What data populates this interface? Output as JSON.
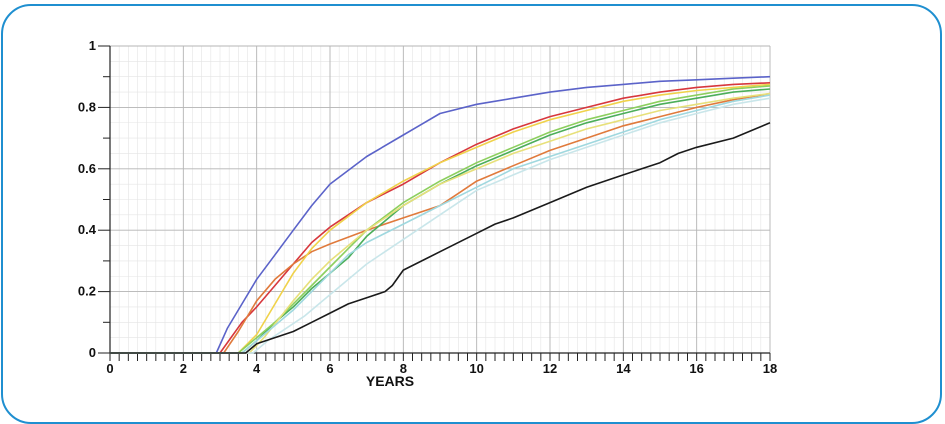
{
  "chart_data": {
    "type": "line",
    "title": "",
    "xlabel": "YEARS",
    "ylabel": "",
    "xlim": [
      0,
      18
    ],
    "ylim": [
      0,
      1
    ],
    "x_ticks": [
      0,
      2,
      4,
      6,
      8,
      10,
      12,
      14,
      16,
      18
    ],
    "y_ticks": [
      0,
      0.2,
      0.4,
      0.6,
      0.8,
      1
    ],
    "x_tick_labels": [
      "0",
      "2",
      "4",
      "6",
      "8",
      "10",
      "12",
      "14",
      "16",
      "18"
    ],
    "y_tick_labels": [
      "0",
      "0.2",
      "0.4",
      "0.6",
      "0.8",
      "1"
    ],
    "grid": true,
    "legend": "none",
    "series": [
      {
        "color": "#5b63c9",
        "x": [
          0,
          2.9,
          3.2,
          3.6,
          4.0,
          4.5,
          5.0,
          5.5,
          6.0,
          7.0,
          8.0,
          9.0,
          10.0,
          11.0,
          12.0,
          13.0,
          14.0,
          15.0,
          16.0,
          17.0,
          18.0
        ],
        "y": [
          0,
          0,
          0.08,
          0.16,
          0.24,
          0.32,
          0.4,
          0.48,
          0.55,
          0.64,
          0.71,
          0.78,
          0.81,
          0.83,
          0.85,
          0.865,
          0.875,
          0.885,
          0.89,
          0.895,
          0.9
        ]
      },
      {
        "color": "#d7373d",
        "x": [
          0,
          3.0,
          3.3,
          3.6,
          4.0,
          4.5,
          5.0,
          5.5,
          6.0,
          7.0,
          8.0,
          9.0,
          10.0,
          11.0,
          12.0,
          13.0,
          14.0,
          15.0,
          16.0,
          17.0,
          18.0
        ],
        "y": [
          0,
          0,
          0.05,
          0.1,
          0.15,
          0.22,
          0.29,
          0.36,
          0.41,
          0.49,
          0.55,
          0.62,
          0.68,
          0.73,
          0.77,
          0.8,
          0.83,
          0.85,
          0.865,
          0.875,
          0.88
        ]
      },
      {
        "color": "#e07a3c",
        "x": [
          0,
          3.1,
          3.5,
          4.0,
          4.5,
          5.0,
          5.5,
          6.0,
          7.0,
          8.0,
          9.0,
          9.5,
          10.0,
          11.0,
          12.0,
          13.0,
          14.0,
          15.0,
          16.0,
          17.0,
          18.0
        ],
        "y": [
          0,
          0,
          0.07,
          0.17,
          0.24,
          0.29,
          0.33,
          0.355,
          0.4,
          0.44,
          0.48,
          0.52,
          0.56,
          0.61,
          0.66,
          0.7,
          0.74,
          0.77,
          0.8,
          0.825,
          0.845
        ]
      },
      {
        "color": "#f0d24a",
        "x": [
          0,
          3.5,
          4.0,
          4.5,
          5.0,
          5.5,
          6.0,
          7.0,
          8.0,
          9.0,
          10.0,
          11.0,
          12.0,
          13.0,
          14.0,
          15.0,
          16.0,
          17.0,
          18.0
        ],
        "y": [
          0,
          0,
          0.06,
          0.16,
          0.26,
          0.34,
          0.4,
          0.49,
          0.56,
          0.62,
          0.67,
          0.72,
          0.76,
          0.79,
          0.82,
          0.84,
          0.855,
          0.865,
          0.875
        ]
      },
      {
        "color": "#4cae5a",
        "x": [
          0,
          3.6,
          4.0,
          4.5,
          5.0,
          5.5,
          6.0,
          6.5,
          7.0,
          8.0,
          9.0,
          10.0,
          11.0,
          12.0,
          13.0,
          14.0,
          15.0,
          16.0,
          17.0,
          18.0
        ],
        "y": [
          0,
          0,
          0.04,
          0.1,
          0.15,
          0.21,
          0.26,
          0.31,
          0.38,
          0.48,
          0.55,
          0.61,
          0.66,
          0.71,
          0.75,
          0.78,
          0.81,
          0.83,
          0.85,
          0.86
        ]
      },
      {
        "color": "#8ccf5e",
        "x": [
          0,
          3.5,
          4.0,
          4.5,
          5.0,
          5.5,
          6.0,
          6.5,
          7.0,
          8.0,
          9.0,
          10.0,
          11.0,
          12.0,
          13.0,
          14.0,
          15.0,
          16.0,
          17.0,
          18.0
        ],
        "y": [
          0,
          0,
          0.05,
          0.1,
          0.16,
          0.22,
          0.28,
          0.34,
          0.4,
          0.49,
          0.56,
          0.62,
          0.67,
          0.72,
          0.76,
          0.79,
          0.82,
          0.84,
          0.86,
          0.87
        ]
      },
      {
        "color": "#e7e07a",
        "x": [
          0,
          3.8,
          4.2,
          4.6,
          5.0,
          5.5,
          6.0,
          7.0,
          8.0,
          9.0,
          10.0,
          11.0,
          12.0,
          13.0,
          14.0,
          15.0,
          16.0,
          17.0,
          18.0
        ],
        "y": [
          0,
          0,
          0.05,
          0.11,
          0.17,
          0.24,
          0.3,
          0.4,
          0.48,
          0.55,
          0.6,
          0.65,
          0.69,
          0.73,
          0.76,
          0.79,
          0.81,
          0.83,
          0.845
        ]
      },
      {
        "color": "#9fd8df",
        "x": [
          0,
          3.6,
          4.0,
          4.5,
          5.0,
          5.5,
          6.0,
          6.5,
          7.0,
          8.0,
          9.0,
          10.0,
          11.0,
          12.0,
          13.0,
          14.0,
          15.0,
          16.0,
          17.0,
          18.0
        ],
        "y": [
          0,
          0,
          0.04,
          0.09,
          0.14,
          0.2,
          0.26,
          0.32,
          0.36,
          0.42,
          0.48,
          0.54,
          0.6,
          0.64,
          0.68,
          0.72,
          0.76,
          0.79,
          0.82,
          0.84
        ]
      },
      {
        "color": "#c9e6ea",
        "x": [
          0,
          3.9,
          4.3,
          4.8,
          5.3,
          5.8,
          6.3,
          7.0,
          8.0,
          9.0,
          10.0,
          11.0,
          12.0,
          13.0,
          14.0,
          15.0,
          16.0,
          17.0,
          18.0
        ],
        "y": [
          0,
          0,
          0.04,
          0.08,
          0.12,
          0.17,
          0.22,
          0.29,
          0.37,
          0.45,
          0.53,
          0.58,
          0.63,
          0.67,
          0.71,
          0.75,
          0.78,
          0.81,
          0.83
        ]
      },
      {
        "color": "#1a1a1a",
        "x": [
          0,
          3.7,
          4.0,
          4.5,
          5.0,
          5.5,
          6.0,
          6.5,
          7.0,
          7.5,
          7.7,
          8.0,
          9.0,
          10.0,
          10.5,
          11.0,
          12.0,
          13.0,
          14.0,
          14.5,
          15.0,
          15.5,
          16.0,
          17.0,
          18.0
        ],
        "y": [
          0,
          0,
          0.03,
          0.05,
          0.07,
          0.1,
          0.13,
          0.16,
          0.18,
          0.2,
          0.22,
          0.27,
          0.33,
          0.39,
          0.42,
          0.44,
          0.49,
          0.54,
          0.58,
          0.6,
          0.62,
          0.65,
          0.67,
          0.7,
          0.75
        ]
      }
    ]
  }
}
